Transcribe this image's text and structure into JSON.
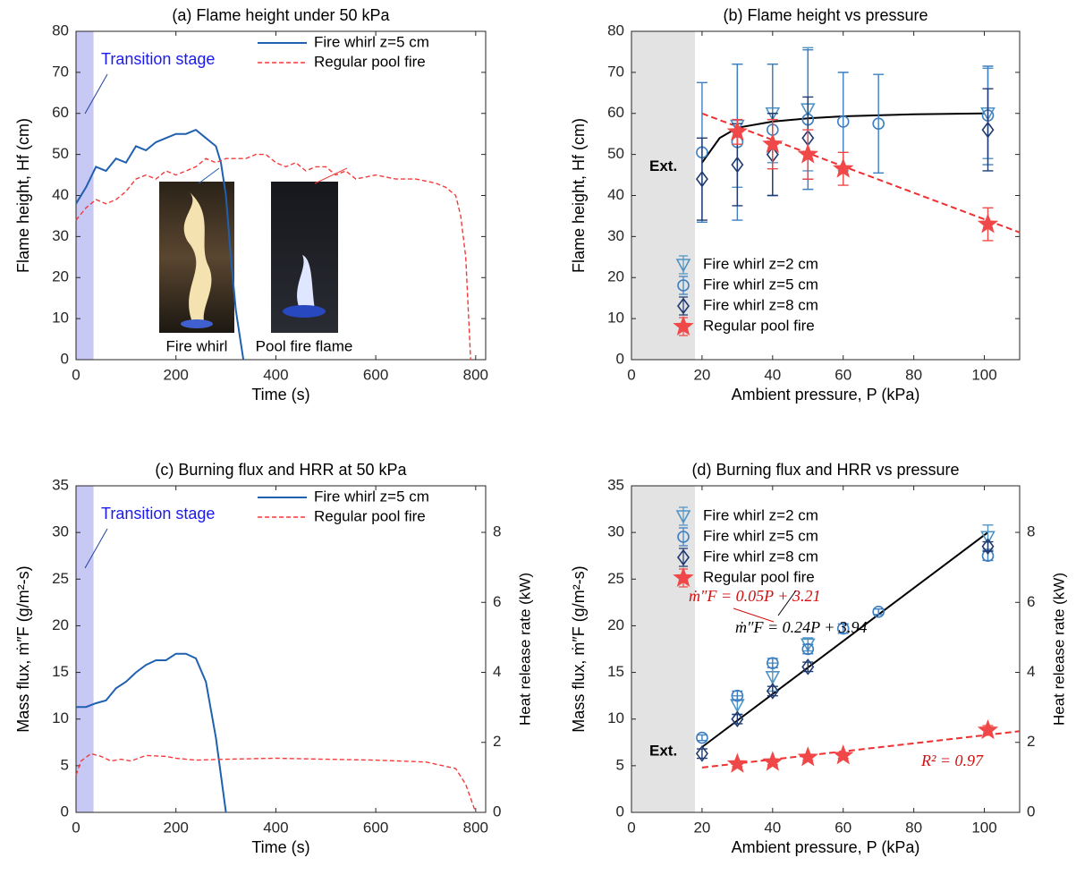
{
  "chart_data": [
    {
      "type": "line",
      "title": "(a) Flame height under 50 kPa",
      "xlabel": "Time (s)",
      "ylabel": "Flame height, Hf (cm)",
      "xlim": [
        0,
        820
      ],
      "xticks": [
        0,
        200,
        400,
        600,
        800
      ],
      "ylim": [
        0,
        80
      ],
      "yticks": [
        0,
        10,
        20,
        30,
        40,
        50,
        60,
        70,
        80
      ],
      "shade": {
        "x": [
          0,
          35
        ],
        "color": "#c8c8f4",
        "label": "Transition stage",
        "label_color": "#1a1aee"
      },
      "legend": "upper right",
      "annotations": [
        {
          "text": "Fire whirl",
          "color": "#000000"
        },
        {
          "text": "Pool fire flame",
          "color": "#000000"
        }
      ],
      "series": [
        {
          "name": "Fire whirl z=5 cm",
          "color": "#2060b0",
          "dash": false,
          "x": [
            0,
            20,
            40,
            60,
            80,
            100,
            120,
            140,
            160,
            180,
            200,
            220,
            240,
            260,
            280,
            290,
            300,
            310,
            320,
            335
          ],
          "values": [
            38,
            42,
            47,
            46,
            49,
            48,
            52,
            51,
            53,
            54,
            55,
            55,
            56,
            54,
            52,
            48,
            40,
            25,
            12,
            0
          ]
        },
        {
          "name": "Regular pool fire",
          "color": "#f03c3c",
          "dash": true,
          "x": [
            0,
            20,
            40,
            60,
            80,
            100,
            120,
            140,
            160,
            180,
            200,
            220,
            240,
            260,
            280,
            300,
            340,
            360,
            380,
            400,
            420,
            440,
            460,
            480,
            500,
            520,
            540,
            560,
            600,
            640,
            680,
            720,
            740,
            760,
            770,
            780,
            790
          ],
          "values": [
            34,
            37,
            39,
            38,
            39,
            41,
            44,
            45,
            44,
            46,
            45,
            46,
            47,
            49,
            48,
            49,
            49,
            50,
            50,
            48,
            47,
            48,
            46,
            47,
            47,
            45,
            46,
            44,
            45,
            44,
            44,
            43,
            42,
            40,
            35,
            25,
            0
          ]
        }
      ]
    },
    {
      "type": "scatter",
      "title": "(b) Flame height vs pressure",
      "xlabel": "Ambient pressure, P (kPa)",
      "ylabel": "Flame height, Hf (cm)",
      "xlim": [
        0,
        110
      ],
      "xticks": [
        0,
        20,
        40,
        60,
        80,
        100
      ],
      "ylim": [
        0,
        80
      ],
      "yticks": [
        0,
        10,
        20,
        30,
        40,
        50,
        60,
        70,
        80
      ],
      "shade": {
        "x": [
          0,
          18
        ],
        "color": "#e3e3e3",
        "label": "Ext.",
        "label_color": "#000000"
      },
      "legend": "lower left",
      "series": [
        {
          "name": "Fire whirl z=2 cm",
          "color": "#4f94c4",
          "marker": "triangle-down",
          "x": [
            30,
            40,
            50,
            101
          ],
          "values": [
            57,
            60,
            61,
            60
          ],
          "errors": [
            15,
            12,
            15,
            11
          ]
        },
        {
          "name": "Fire whirl z=5 cm",
          "color": "#3d7fc0",
          "marker": "circle",
          "x": [
            20,
            30,
            40,
            50,
            60,
            70,
            101
          ],
          "values": [
            50.5,
            53,
            56,
            58.5,
            58,
            57.5,
            59.5
          ],
          "errors": [
            17,
            19,
            16,
            17,
            12,
            12,
            12
          ]
        },
        {
          "name": "Fire whirl z=8 cm",
          "color": "#1f3a70",
          "marker": "diamond",
          "x": [
            20,
            30,
            40,
            50,
            101
          ],
          "values": [
            44,
            47.5,
            50,
            54,
            56
          ],
          "errors": [
            10,
            10,
            10,
            10,
            10
          ]
        },
        {
          "name": "Regular pool fire",
          "color": "#f04848",
          "marker": "star",
          "x": [
            30,
            40,
            50,
            60,
            101
          ],
          "values": [
            55.5,
            52.5,
            50,
            46.5,
            33
          ],
          "errors": [
            3,
            6,
            6,
            4,
            4
          ]
        }
      ],
      "fits": [
        {
          "color": "#000000",
          "dash": false,
          "x": [
            20,
            25,
            30,
            40,
            50,
            60,
            80,
            100
          ],
          "values": [
            48,
            54,
            56.5,
            58,
            58.8,
            59.3,
            59.8,
            60
          ]
        },
        {
          "color": "#f03030",
          "dash": true,
          "x": [
            20,
            110
          ],
          "values": [
            60,
            31
          ]
        }
      ]
    },
    {
      "type": "line",
      "title": "(c) Burning flux and HRR at 50 kPa",
      "xlabel": "Time (s)",
      "ylabel": "Mass flux, ṁ″F (g/m²-s)",
      "y2label": "Heat release rate (kW)",
      "xlim": [
        0,
        820
      ],
      "xticks": [
        0,
        200,
        400,
        600,
        800
      ],
      "ylim": [
        0,
        35
      ],
      "yticks": [
        0,
        5,
        10,
        15,
        20,
        25,
        30,
        35
      ],
      "y2lim": [
        0,
        9.33
      ],
      "y2ticks": [
        0,
        2,
        4,
        6,
        8
      ],
      "shade": {
        "x": [
          0,
          35
        ],
        "color": "#c8c8f4",
        "label": "Transition stage",
        "label_color": "#1a1aee"
      },
      "legend": "upper right",
      "series": [
        {
          "name": "Fire whirl z=5 cm",
          "color": "#2060b0",
          "dash": false,
          "x": [
            0,
            20,
            40,
            60,
            80,
            100,
            120,
            140,
            160,
            180,
            200,
            220,
            240,
            260,
            280,
            300
          ],
          "values": [
            11.3,
            11.3,
            11.7,
            12,
            13.3,
            14,
            15,
            15.8,
            16.3,
            16.3,
            17,
            17,
            16.5,
            14,
            8,
            0
          ]
        },
        {
          "name": "Regular pool fire",
          "color": "#f03c3c",
          "dash": true,
          "x": [
            0,
            10,
            30,
            50,
            70,
            90,
            110,
            140,
            180,
            200,
            240,
            300,
            400,
            500,
            600,
            700,
            760,
            780,
            800
          ],
          "values": [
            4,
            5.5,
            6.3,
            6,
            5.5,
            5.7,
            5.5,
            6.1,
            6,
            5.8,
            5.6,
            5.7,
            5.8,
            5.7,
            5.6,
            5.4,
            4.7,
            3,
            0
          ]
        }
      ]
    },
    {
      "type": "scatter",
      "title": "(d) Burning flux and HRR vs pressure",
      "xlabel": "Ambient pressure, P (kPa)",
      "ylabel": "Mass flux, ṁ″F (g/m²-s)",
      "y2label": "Heat release rate (kW)",
      "xlim": [
        0,
        110
      ],
      "xticks": [
        0,
        20,
        40,
        60,
        80,
        100
      ],
      "ylim": [
        0,
        35
      ],
      "yticks": [
        0,
        5,
        10,
        15,
        20,
        25,
        30,
        35
      ],
      "y2lim": [
        0,
        9.33
      ],
      "y2ticks": [
        0,
        2,
        4,
        6,
        8
      ],
      "shade": {
        "x": [
          0,
          18
        ],
        "color": "#e3e3e3",
        "label": "Ext.",
        "label_color": "#000000"
      },
      "legend": "upper left",
      "annotations": [
        {
          "text": "ṁ″F = 0.24P + 3.94",
          "color": "#000000"
        },
        {
          "text": "ṁ″F = 0.05P + 3.21",
          "color": "#d01010"
        },
        {
          "text": "R² = 0.97",
          "color": "#d01010"
        }
      ],
      "series": [
        {
          "name": "Fire whirl z=2 cm",
          "color": "#4f94c4",
          "marker": "triangle-down",
          "x": [
            30,
            40,
            50,
            101
          ],
          "values": [
            11.5,
            14.5,
            18,
            29.5
          ],
          "errors": [
            1,
            1.5,
            0.7,
            1.3
          ]
        },
        {
          "name": "Fire whirl z=5 cm",
          "color": "#3d7fc0",
          "marker": "circle",
          "x": [
            20,
            30,
            40,
            50,
            60,
            70,
            101
          ],
          "values": [
            8,
            12.5,
            16,
            17.5,
            19.7,
            21.5,
            27.5
          ],
          "errors": [
            0.3,
            0.5,
            0.5,
            0.5,
            0.5,
            0.3,
            0.5
          ]
        },
        {
          "name": "Fire whirl z=8 cm",
          "color": "#1f3a70",
          "marker": "diamond",
          "x": [
            20,
            30,
            40,
            50,
            101
          ],
          "values": [
            6.3,
            10,
            13,
            15.6,
            28.5
          ],
          "errors": [
            0.5,
            0.5,
            0.5,
            0.5,
            0.5
          ]
        },
        {
          "name": "Regular pool fire",
          "color": "#f04848",
          "marker": "star",
          "x": [
            30,
            40,
            50,
            60,
            101
          ],
          "values": [
            5.2,
            5.4,
            5.9,
            6.1,
            8.8
          ],
          "errors": [
            0.3,
            0.3,
            0.3,
            0.3,
            0.5
          ]
        }
      ],
      "fits": [
        {
          "color": "#000000",
          "dash": false,
          "x": [
            20,
            101
          ],
          "values": [
            7,
            30
          ]
        },
        {
          "color": "#f03030",
          "dash": true,
          "x": [
            20,
            110
          ],
          "values": [
            4.8,
            8.7
          ]
        }
      ]
    }
  ]
}
